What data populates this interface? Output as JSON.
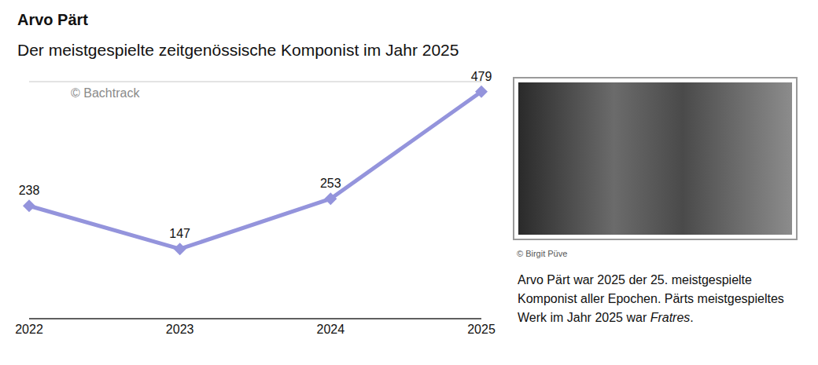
{
  "chart_data": {
    "type": "line",
    "title": "Arvo Pärt",
    "subtitle": "Der meistgespielte zeitgenössische Komponist im Jahr 2025",
    "categories": [
      "2022",
      "2023",
      "2024",
      "2025"
    ],
    "values": [
      238,
      147,
      253,
      479
    ],
    "color": "#9494dc",
    "marker": "diamond",
    "data_labels": true,
    "ylim": [
      0,
      500
    ],
    "yticks": [
      0,
      125,
      250,
      375,
      500
    ],
    "grid": true,
    "tick_labels": "x",
    "annotations": [
      "© Bachtrack"
    ]
  },
  "photo_credit": "© Birgit Püve",
  "caption": [
    "Arvo Pärt war 2025 der 25. meistgespielte Komponist aller Epochen. Pärts meistgespieltes Werk im Jahr 2025 war",
    "Fratres",
    "."
  ]
}
